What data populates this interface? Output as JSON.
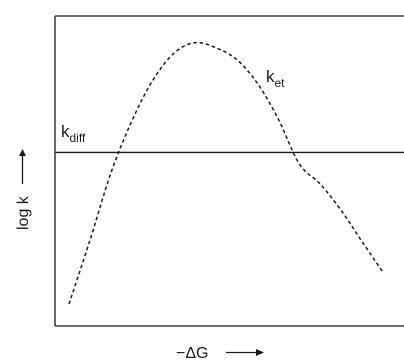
{
  "chart_data": {
    "type": "line",
    "title": "",
    "xlabel": "−ΔG",
    "ylabel": "log k",
    "grid": false,
    "legend": "none",
    "xlim": [
      0,
      10
    ],
    "ylim": [
      0,
      10
    ],
    "series": [
      {
        "name": "k_et",
        "label_main": "k",
        "label_sub": "et",
        "style": "dashed",
        "color": "#1a1a1a",
        "x": [
          0.4,
          1.0,
          1.6,
          2.2,
          2.8,
          3.4,
          4.0,
          4.6,
          5.2,
          5.8,
          6.4,
          7.0,
          7.6,
          8.2,
          8.8,
          9.4
        ],
        "y": [
          0.71,
          2.76,
          4.93,
          6.61,
          7.92,
          8.79,
          9.14,
          8.98,
          8.6,
          7.83,
          6.67,
          5.23,
          4.58,
          3.73,
          2.72,
          1.73
        ]
      },
      {
        "name": "k_diff",
        "label_main": "k",
        "label_sub": "diff",
        "style": "solid",
        "color": "#1a1a1a",
        "x": [
          0,
          10
        ],
        "y": [
          5.6,
          5.6
        ]
      }
    ]
  }
}
